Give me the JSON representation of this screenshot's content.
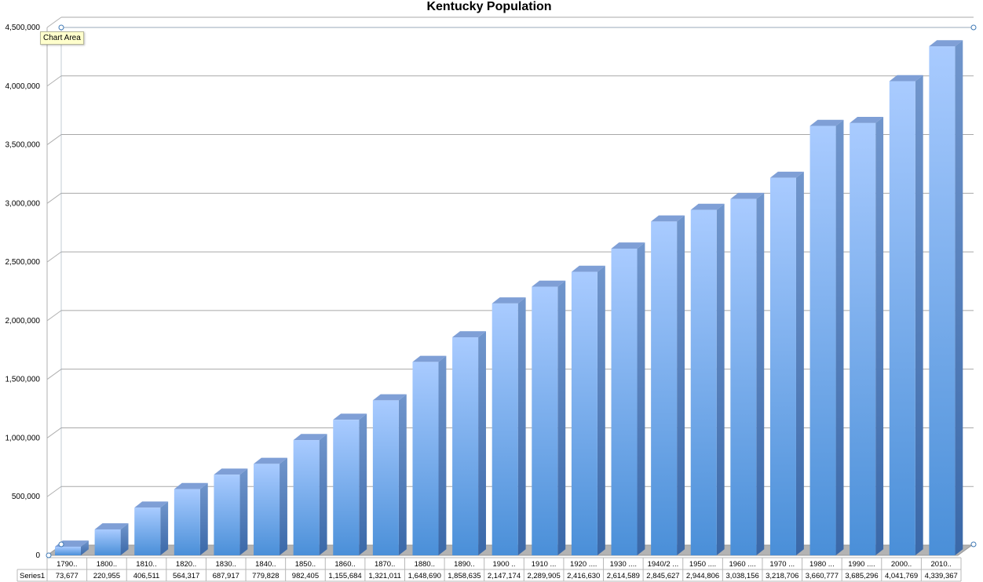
{
  "tooltip": {
    "label": "Chart Area"
  },
  "chart_data": {
    "type": "bar",
    "title": "Kentucky Population",
    "xlabel": "",
    "ylabel": "",
    "ylim": [
      0,
      4500000
    ],
    "yticks": [
      0,
      500000,
      1000000,
      1500000,
      2000000,
      2500000,
      3000000,
      3500000,
      4000000,
      4500000
    ],
    "ytick_labels": [
      "0",
      "500,000",
      "1,000,000",
      "1,500,000",
      "2,000,000",
      "2,500,000",
      "3,000,000",
      "3,500,000",
      "4,000,000",
      "4,500,000"
    ],
    "grid": true,
    "legend": "none",
    "data_table": true,
    "bar_color": "#7fb1f0",
    "categories": [
      "1790..",
      "1800..",
      "1810..",
      "1820..",
      "1830..",
      "1840..",
      "1850..",
      "1860..",
      "1870..",
      "1880..",
      "1890..",
      "1900 ..",
      "1910 ...",
      "1920 ....",
      "1930 ....",
      "1940/2 ...",
      "1950 ....",
      "1960 ....",
      "1970 ...",
      "1980 ...",
      "1990 ....",
      "2000..",
      "2010.."
    ],
    "series": [
      {
        "name": "Series1",
        "values": [
          73677,
          220955,
          406511,
          564317,
          687917,
          779828,
          982405,
          1155684,
          1321011,
          1648690,
          1858635,
          2147174,
          2289905,
          2416630,
          2614589,
          2845627,
          2944806,
          3038156,
          3218706,
          3660777,
          3685296,
          4041769,
          4339367
        ],
        "value_labels": [
          "73,677",
          "220,955",
          "406,511",
          "564,317",
          "687,917",
          "779,828",
          "982,405",
          "1,155,684",
          "1,321,011",
          "1,648,690",
          "1,858,635",
          "2,147,174",
          "2,289,905",
          "2,416,630",
          "2,614,589",
          "2,845,627",
          "2,944,806",
          "3,038,156",
          "3,218,706",
          "3,660,777",
          "3,685,296",
          "4,041,769",
          "4,339,367"
        ]
      }
    ]
  }
}
